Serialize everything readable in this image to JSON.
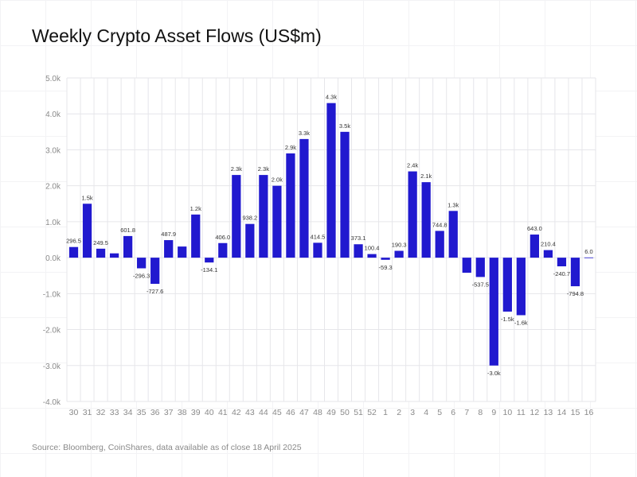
{
  "title": "Weekly Crypto Asset Flows (US$m)",
  "source": "Source: Bloomberg, CoinShares, data available as of close 18 April 2025",
  "colors": {
    "bar": "#2119cf",
    "grid": "#e6e6ea",
    "axis_text": "#8a8a8a",
    "label_text": "#333333"
  },
  "chart_data": {
    "type": "bar",
    "title": "Weekly Crypto Asset Flows (US$m)",
    "xlabel": "",
    "ylabel": "",
    "ylim": [
      -4000,
      5000
    ],
    "grid": true,
    "ytick_values": [
      5000,
      4000,
      3000,
      2000,
      1000,
      0,
      -1000,
      -2000,
      -3000,
      -4000
    ],
    "ytick_labels": [
      "5.0k",
      "4.0k",
      "3.0k",
      "2.0k",
      "1.0k",
      "0.0k",
      "-1.0k",
      "-2.0k",
      "-3.0k",
      "-4.0k"
    ],
    "categories": [
      "30",
      "31",
      "32",
      "33",
      "34",
      "35",
      "36",
      "37",
      "38",
      "39",
      "40",
      "41",
      "42",
      "43",
      "44",
      "45",
      "46",
      "47",
      "48",
      "49",
      "50",
      "51",
      "52",
      "1",
      "2",
      "3",
      "4",
      "5",
      "6",
      "7",
      "8",
      "9",
      "10",
      "11",
      "12",
      "13",
      "14",
      "15",
      "16"
    ],
    "values": [
      296.5,
      1500,
      249.5,
      120,
      601.8,
      -296.3,
      -727.6,
      487.9,
      310,
      1200,
      -134.1,
      406.0,
      2300,
      938.2,
      2300,
      2000,
      2900,
      3300,
      414.5,
      4300,
      3500,
      373.1,
      100.4,
      -59.3,
      190.3,
      2400,
      2100,
      744.8,
      1300,
      -420,
      -537.5,
      -3000,
      -1500,
      -1600,
      643.0,
      210.4,
      -240.7,
      -794.8,
      6.0
    ],
    "data_labels": [
      "296.5",
      "1.5k",
      "249.5",
      "",
      "601.8",
      "-296.3",
      "-727.6",
      "487.9",
      "",
      "1.2k",
      "-134.1",
      "406.0",
      "2.3k",
      "938.2",
      "2.3k",
      "2.0k",
      "2.9k",
      "3.3k",
      "414.5",
      "4.3k",
      "3.5k",
      "373.1",
      "100.4",
      "-59.3",
      "190.3",
      "2.4k",
      "2.1k",
      "744.8",
      "1.3k",
      "",
      "-537.5",
      "-3.0k",
      "-1.5k",
      "-1.6k",
      "643.0",
      "210.4",
      "-240.7",
      "-794.8",
      "6.0"
    ]
  }
}
